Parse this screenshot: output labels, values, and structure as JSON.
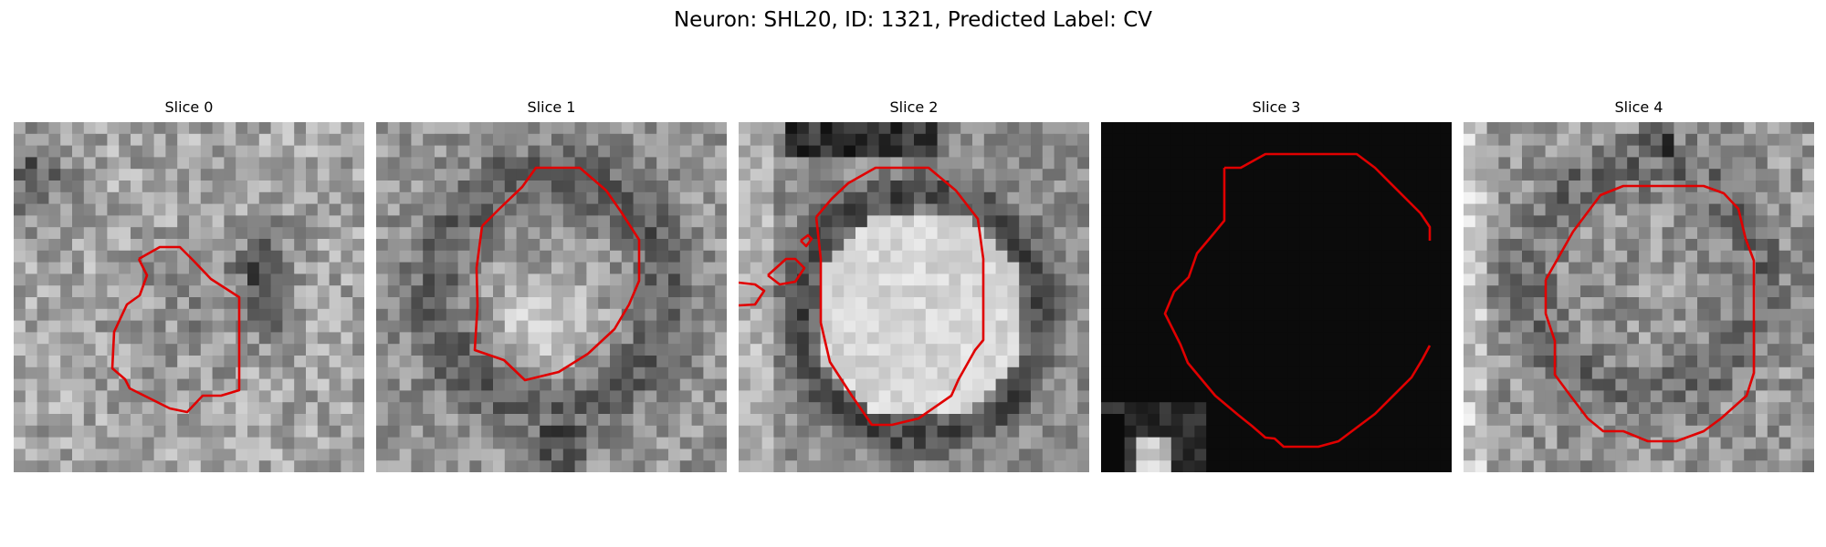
{
  "figure": {
    "title": "Neuron: SHL20, ID: 1321, Predicted Label: CV",
    "contour_color": "#e00000"
  },
  "slices": [
    {
      "label": "Slice 0"
    },
    {
      "label": "Slice 1"
    },
    {
      "label": "Slice 2"
    },
    {
      "label": "Slice 3"
    },
    {
      "label": "Slice 4"
    }
  ]
}
